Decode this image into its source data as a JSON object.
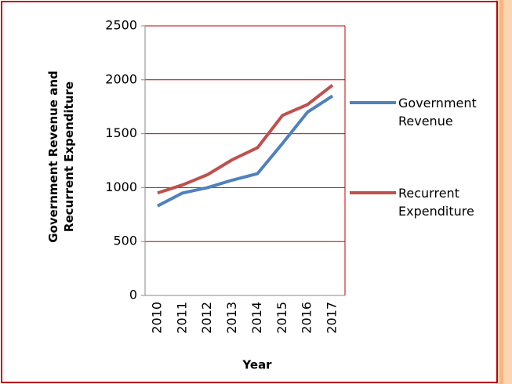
{
  "chart_data": {
    "type": "line",
    "categories": [
      "2010",
      "2011",
      "2012",
      "2013",
      "2014",
      "2015",
      "2016",
      "2017"
    ],
    "series": [
      {
        "name": "Government Revenue",
        "color": "#4f81bd",
        "values": [
          830,
          950,
          1000,
          1070,
          1130,
          1410,
          1700,
          1850
        ]
      },
      {
        "name": "Recurrent Expenditure",
        "color": "#c0504d",
        "values": [
          950,
          1025,
          1120,
          1260,
          1370,
          1670,
          1770,
          1950
        ]
      }
    ],
    "ylim": [
      0,
      2500
    ],
    "yticks": [
      0,
      500,
      1000,
      1500,
      2000,
      2500
    ],
    "xlabel": "Year",
    "ylabel": "Government Revenue and Recurrent Expenditure",
    "grid": true,
    "grid_color": "#c00000",
    "legend": "right"
  }
}
